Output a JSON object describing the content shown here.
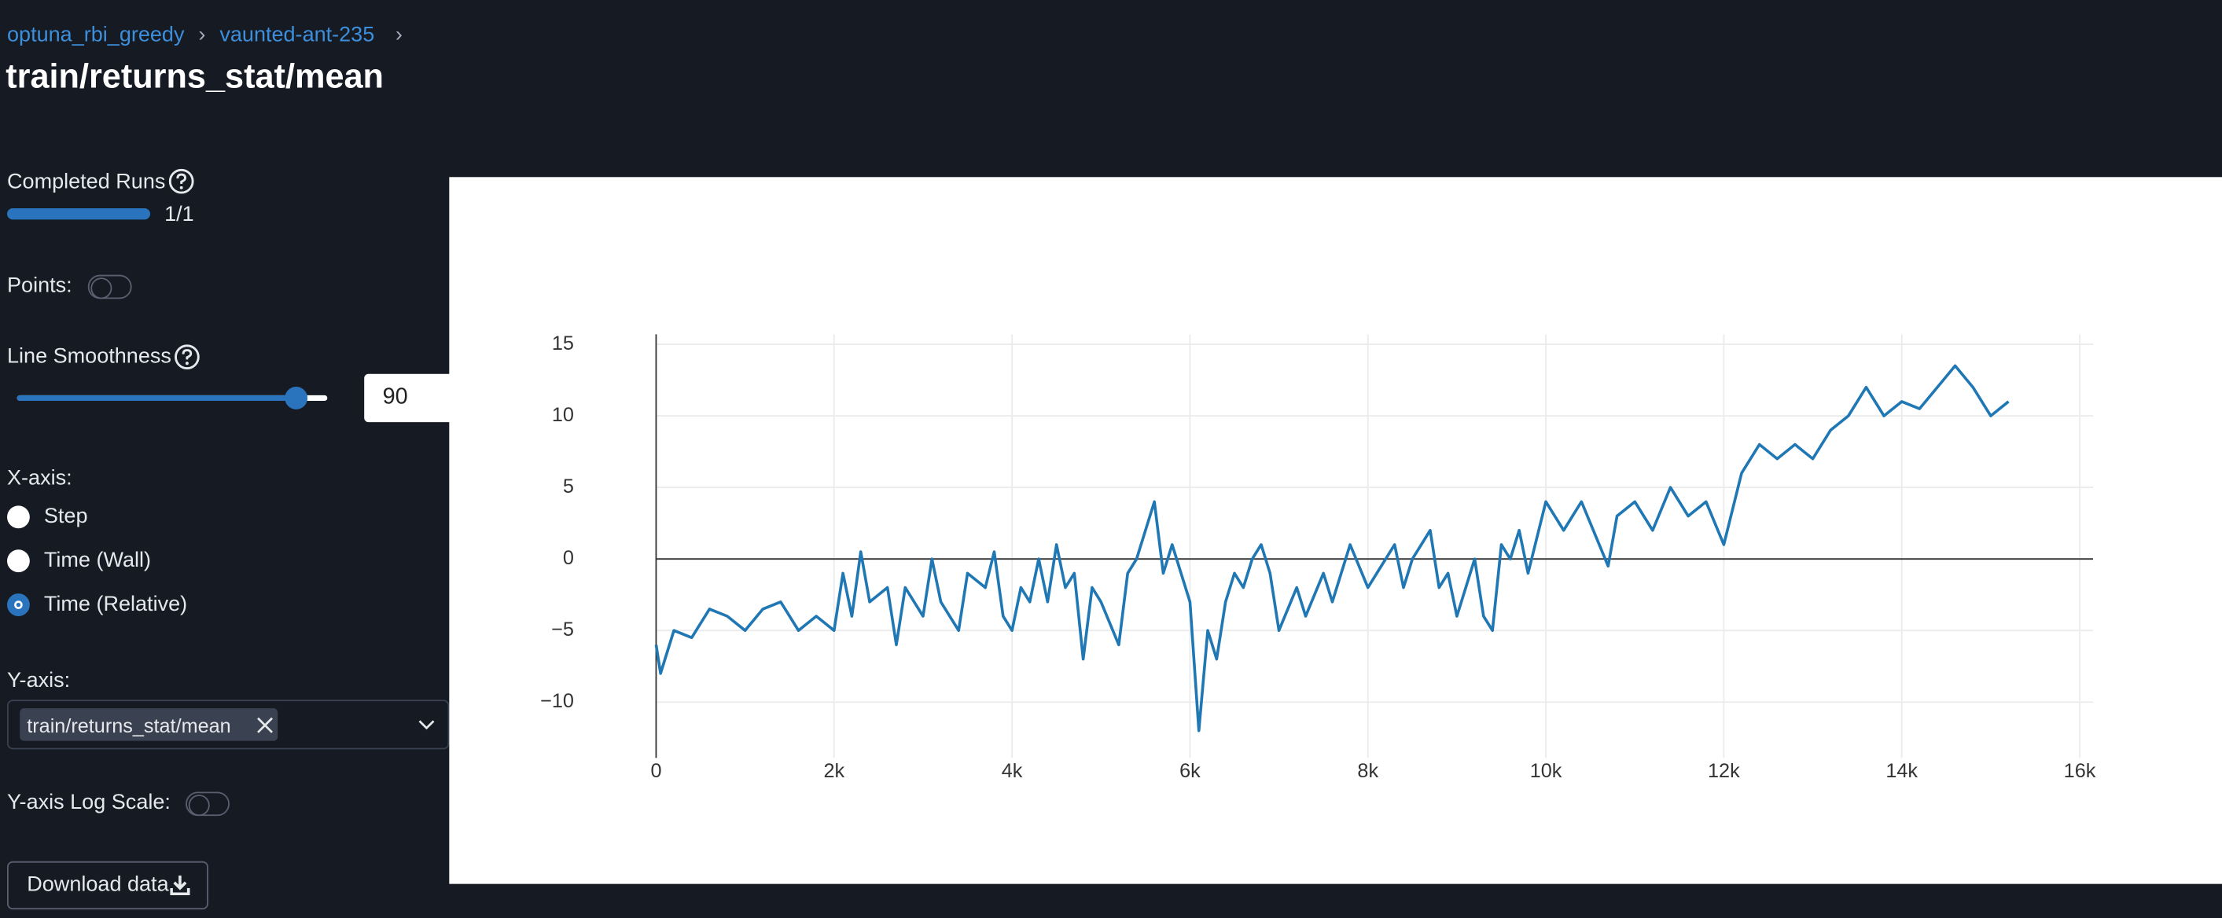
{
  "breadcrumb": [
    "optuna_rbi_greedy",
    "vaunted-ant-235"
  ],
  "breadcrumb_separator": "›",
  "title": "train/returns_stat/mean",
  "controls": {
    "completed_runs_label": "Completed Runs",
    "completed_runs_value": "1/1",
    "points_label": "Points:",
    "points_on": false,
    "smoothness_label": "Line Smoothness",
    "smoothness_value": 90,
    "x_axis_label": "X-axis:",
    "x_axis_options": [
      "Step",
      "Time (Wall)",
      "Time (Relative)"
    ],
    "x_axis_selected": 2,
    "y_axis_label": "Y-axis:",
    "y_axis_selected": "train/returns_stat/mean",
    "log_scale_label": "Y-axis Log Scale:",
    "log_scale_on": false,
    "download_label": "Download data"
  },
  "chart_data": {
    "type": "line",
    "x": [
      0,
      50,
      200,
      400,
      600,
      800,
      1000,
      1200,
      1400,
      1600,
      1800,
      2000,
      2100,
      2200,
      2300,
      2400,
      2600,
      2700,
      2800,
      3000,
      3100,
      3200,
      3400,
      3500,
      3700,
      3800,
      3900,
      4000,
      4100,
      4200,
      4300,
      4400,
      4500,
      4600,
      4700,
      4800,
      4900,
      5000,
      5200,
      5300,
      5400,
      5500,
      5600,
      5700,
      5800,
      5900,
      6000,
      6100,
      6200,
      6300,
      6400,
      6500,
      6600,
      6700,
      6800,
      6900,
      7000,
      7200,
      7300,
      7500,
      7600,
      7800,
      8000,
      8100,
      8300,
      8400,
      8500,
      8700,
      8800,
      8900,
      9000,
      9200,
      9300,
      9400,
      9500,
      9600,
      9700,
      9800,
      10000,
      10200,
      10400,
      10600,
      10700,
      10800,
      11000,
      11200,
      11400,
      11600,
      11800,
      12000,
      12200,
      12400,
      12600,
      12800,
      13000,
      13200,
      13400,
      13600,
      13800,
      14000,
      14200,
      14400,
      14600,
      14800,
      15000,
      15200
    ],
    "series": [
      {
        "color": "#1f77b4",
        "values": [
          -6,
          -8,
          -5,
          -5.5,
          -3.5,
          -4,
          -5,
          -3.5,
          -3,
          -5,
          -4,
          -5,
          -1,
          -4,
          0.5,
          -3,
          -2,
          -6,
          -2,
          -4,
          0,
          -3,
          -5,
          -1,
          -2,
          0.5,
          -4,
          -5,
          -2,
          -3,
          0,
          -3,
          1,
          -2,
          -1,
          -7,
          -2,
          -3,
          -6,
          -1,
          0,
          2,
          4,
          -1,
          1,
          -1,
          -3,
          -12,
          -5,
          -7,
          -3,
          -1,
          -2,
          0,
          1,
          -1,
          -5,
          -2,
          -4,
          -1,
          -3,
          1,
          -2,
          -1,
          1,
          -2,
          0,
          2,
          -2,
          -1,
          -4,
          0,
          -4,
          -5,
          1,
          0,
          2,
          -1,
          4,
          2,
          4,
          1,
          -0.5,
          3,
          4,
          2,
          5,
          3,
          4,
          1,
          6,
          8,
          7,
          8,
          7,
          9,
          10,
          12,
          10,
          11,
          10.5,
          12,
          13.5,
          12,
          10,
          11
        ]
      }
    ],
    "xlim": [
      0,
      16150
    ],
    "ylim": [
      -13.9,
      15.7
    ],
    "xticks": [
      0,
      {
        "value": 2000,
        "label": "2k"
      },
      {
        "value": 4000,
        "label": "4k"
      },
      {
        "value": 6000,
        "label": "6k"
      },
      {
        "value": 8000,
        "label": "8k"
      },
      {
        "value": 10000,
        "label": "10k"
      },
      {
        "value": 12000,
        "label": "12k"
      },
      {
        "value": 14000,
        "label": "14k"
      },
      {
        "value": 16000,
        "label": "16k"
      }
    ],
    "yticks": [
      {
        "value": -10,
        "label": "−10"
      },
      {
        "value": -5,
        "label": "−5"
      },
      0,
      5,
      10,
      15
    ],
    "grid": true
  }
}
